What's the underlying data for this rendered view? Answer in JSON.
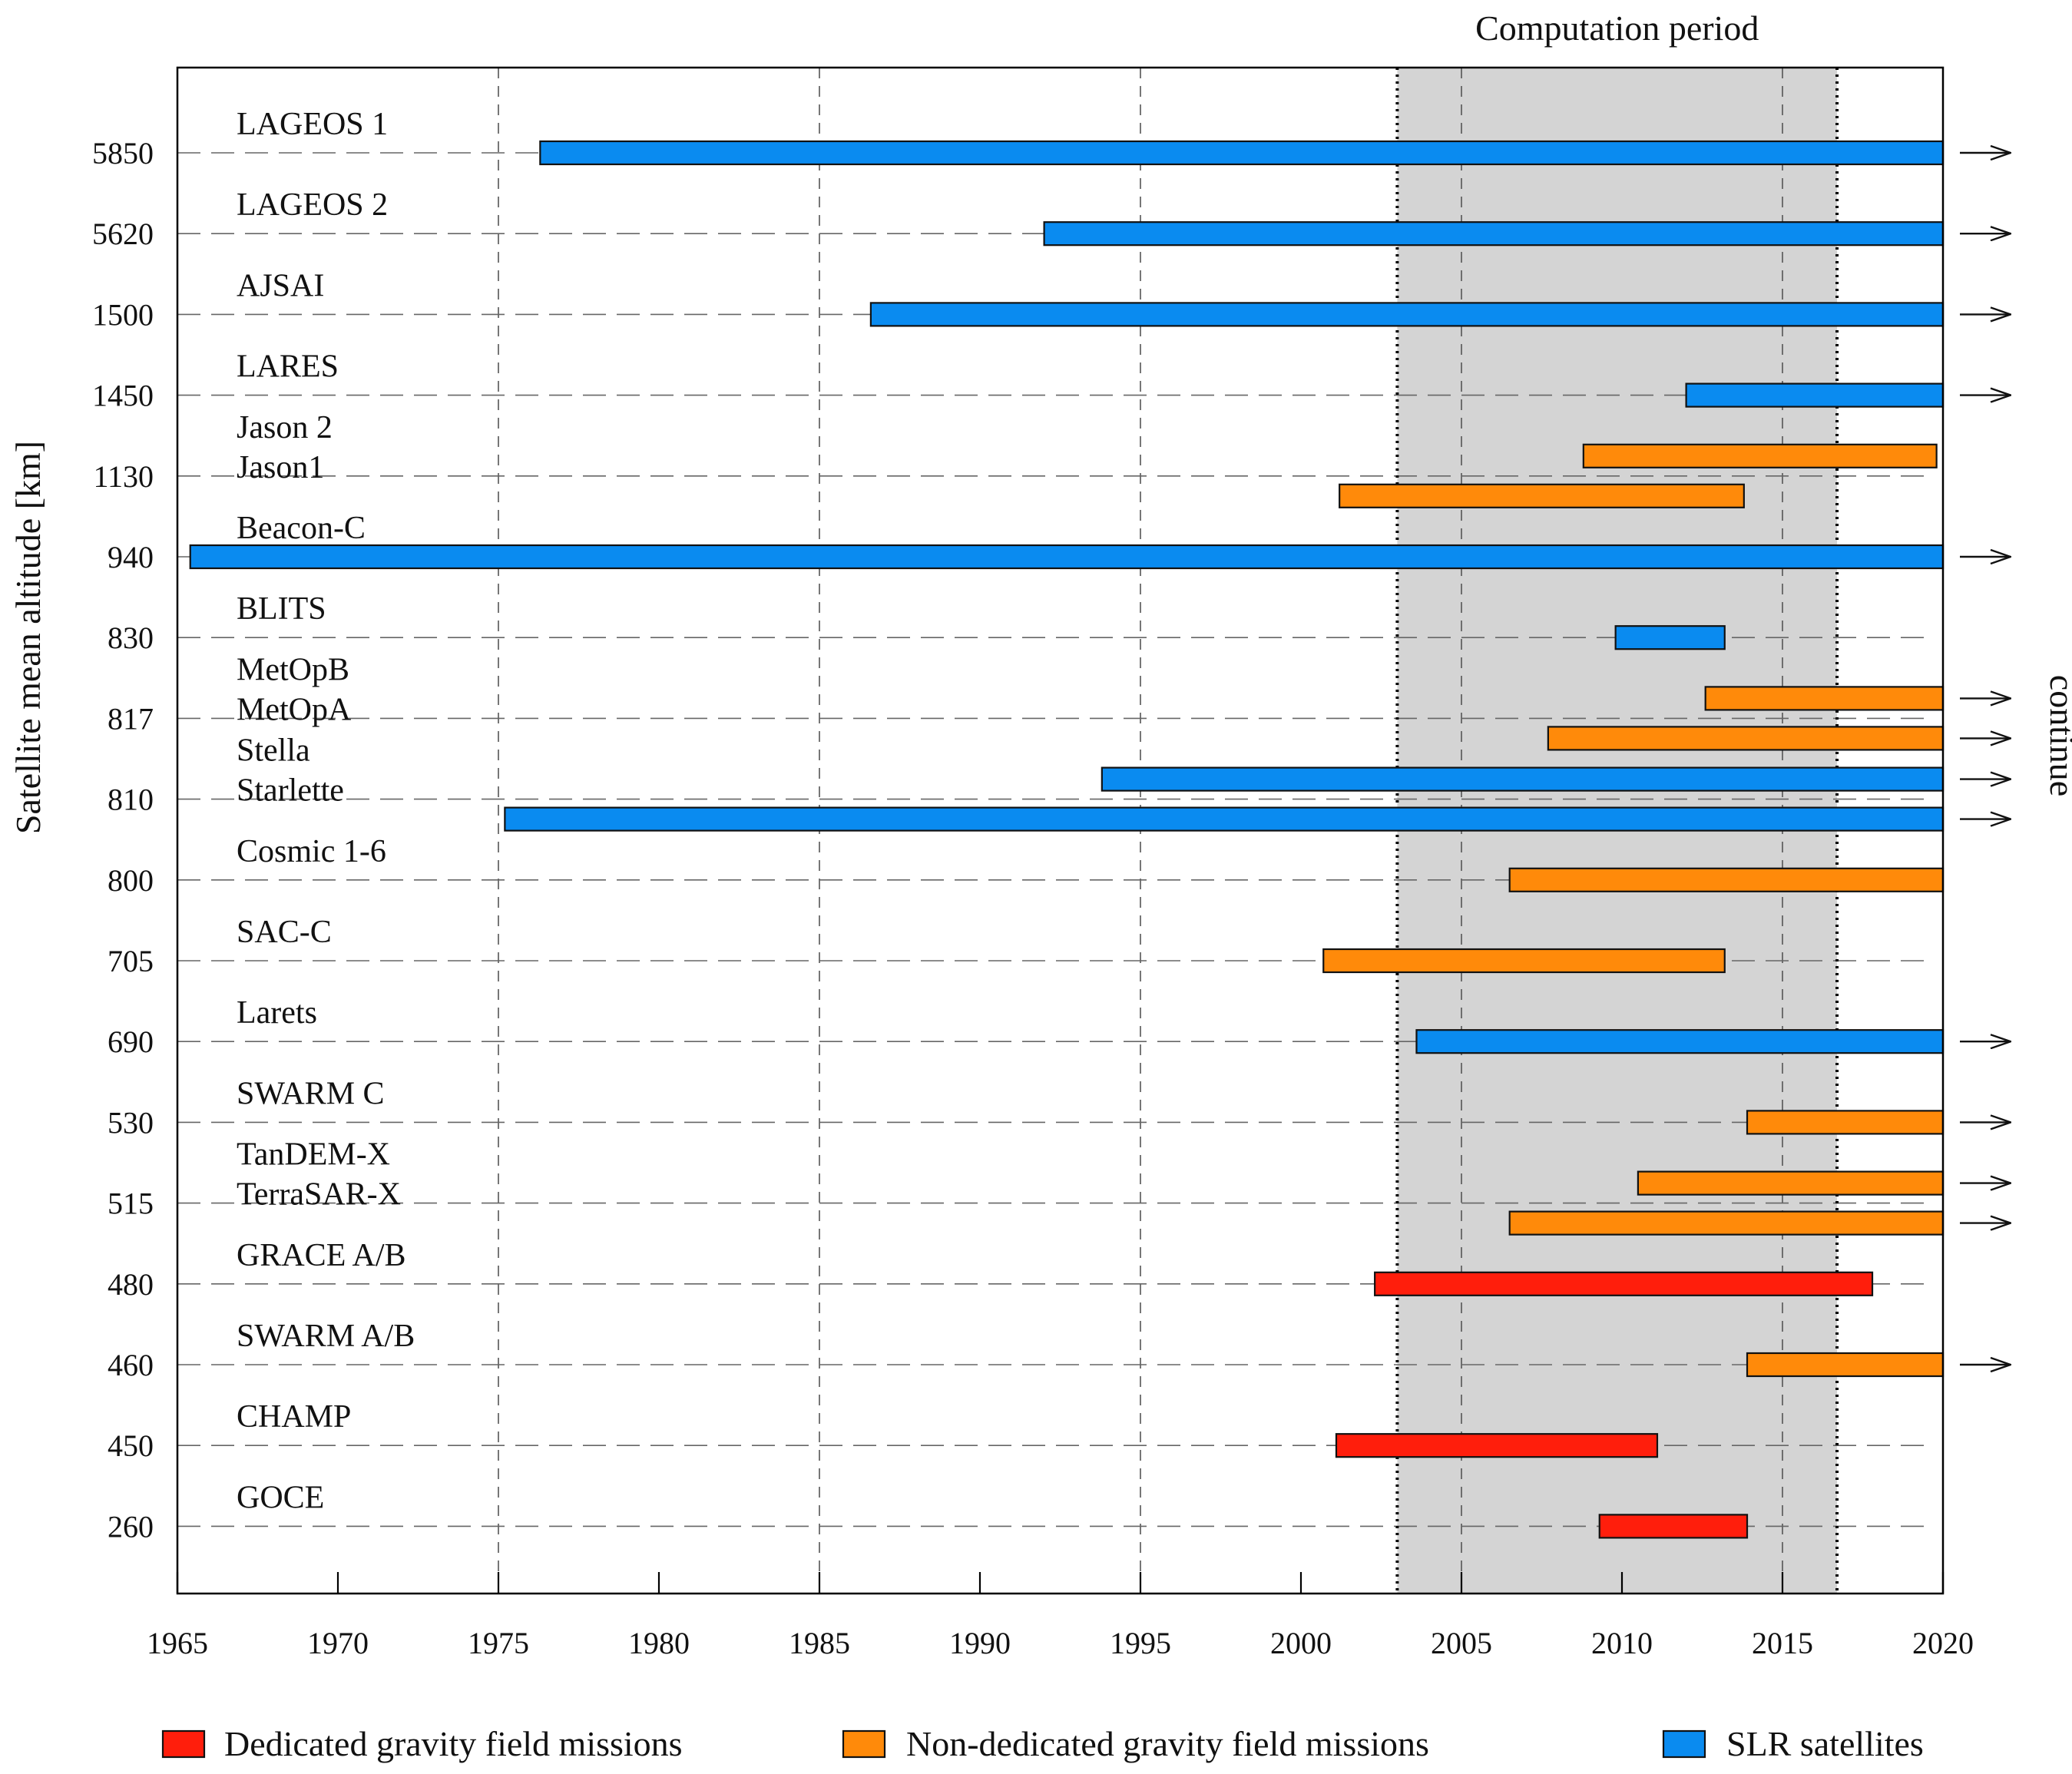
{
  "chart_data": {
    "type": "timeline-bar",
    "title": "",
    "ylabel": "Satellite mean altitude [km]",
    "xlabel": "",
    "xlim": [
      1965,
      2020
    ],
    "xticks": [
      1965,
      1970,
      1975,
      1980,
      1985,
      1990,
      1995,
      2000,
      2005,
      2010,
      2015,
      2020
    ],
    "yticks": [
      "5850",
      "5620",
      "1500",
      "1450",
      "1130",
      "940",
      "830",
      "817",
      "810",
      "800",
      "705",
      "690",
      "530",
      "515",
      "480",
      "460",
      "450",
      "260"
    ],
    "grid": {
      "vertical_dashed": true,
      "horizontal_dashed": true
    },
    "computation_period": {
      "label": "Computation period",
      "start": 2003.0,
      "end": 2016.7
    },
    "continue_label": "continue",
    "categories": {
      "dedicated": {
        "label": "Dedicated gravity field missions",
        "color": "#ff1e0c"
      },
      "nondedicated": {
        "label": "Non-dedicated gravity field missions",
        "color": "#ff8a0a"
      },
      "slr": {
        "label": "SLR satellites",
        "color": "#0a8bf0"
      }
    },
    "shade_color": "#d4d4d4",
    "missions": [
      {
        "name": "LAGEOS 1",
        "tick": 0,
        "offset": 0,
        "start": 1976.3,
        "end": 2020.0,
        "type": "slr",
        "continue": true
      },
      {
        "name": "LAGEOS 2",
        "tick": 1,
        "offset": 0,
        "start": 1992.0,
        "end": 2020.0,
        "type": "slr",
        "continue": true
      },
      {
        "name": "AJSAI",
        "tick": 2,
        "offset": 0,
        "start": 1986.6,
        "end": 2020.0,
        "type": "slr",
        "continue": true
      },
      {
        "name": "LARES",
        "tick": 3,
        "offset": 0,
        "start": 2012.0,
        "end": 2020.0,
        "type": "slr",
        "continue": true
      },
      {
        "name": "Jason 2",
        "tick": 4,
        "offset": -1,
        "start": 2008.8,
        "end": 2019.8,
        "type": "nondedicated",
        "continue": false
      },
      {
        "name": "Jason1",
        "tick": 4,
        "offset": 1,
        "start": 2001.2,
        "end": 2013.8,
        "type": "nondedicated",
        "continue": false
      },
      {
        "name": "Beacon-C",
        "tick": 5,
        "offset": 0,
        "start": 1965.4,
        "end": 2020.0,
        "type": "slr",
        "continue": true
      },
      {
        "name": "BLITS",
        "tick": 6,
        "offset": 0,
        "start": 2009.8,
        "end": 2013.2,
        "type": "slr",
        "continue": false
      },
      {
        "name": "MetOpB",
        "tick": 7,
        "offset": -1,
        "start": 2012.6,
        "end": 2020.0,
        "type": "nondedicated",
        "continue": true
      },
      {
        "name": "MetOpA",
        "tick": 7,
        "offset": 1,
        "start": 2007.7,
        "end": 2020.0,
        "type": "nondedicated",
        "continue": true
      },
      {
        "name": "Stella",
        "tick": 8,
        "offset": -1,
        "start": 1993.8,
        "end": 2020.0,
        "type": "slr",
        "continue": true
      },
      {
        "name": "Starlette",
        "tick": 8,
        "offset": 1,
        "start": 1975.2,
        "end": 2020.0,
        "type": "slr",
        "continue": true
      },
      {
        "name": "Cosmic 1-6",
        "tick": 9,
        "offset": 0,
        "start": 2006.5,
        "end": 2020.0,
        "type": "nondedicated",
        "continue": false
      },
      {
        "name": "SAC-C",
        "tick": 10,
        "offset": 0,
        "start": 2000.7,
        "end": 2013.2,
        "type": "nondedicated",
        "continue": false
      },
      {
        "name": "Larets",
        "tick": 11,
        "offset": 0,
        "start": 2003.6,
        "end": 2020.0,
        "type": "slr",
        "continue": true
      },
      {
        "name": "SWARM_C",
        "tick": 12,
        "offset": 0,
        "start": 2013.9,
        "end": 2020.0,
        "type": "nondedicated",
        "continue": true
      },
      {
        "name": "TanDEM-X",
        "tick": 13,
        "offset": -1,
        "start": 2010.5,
        "end": 2020.0,
        "type": "nondedicated",
        "continue": true
      },
      {
        "name": "TerraSAR-X",
        "tick": 13,
        "offset": 1,
        "start": 2006.5,
        "end": 2020.0,
        "type": "nondedicated",
        "continue": true
      },
      {
        "name": "GRACE A/B",
        "tick": 14,
        "offset": 0,
        "start": 2002.3,
        "end": 2017.8,
        "type": "dedicated",
        "continue": false
      },
      {
        "name": "SWARM_A/B",
        "tick": 15,
        "offset": 0,
        "start": 2013.9,
        "end": 2020.0,
        "type": "nondedicated",
        "continue": true
      },
      {
        "name": "CHAMP",
        "tick": 16,
        "offset": 0,
        "start": 2001.1,
        "end": 2011.1,
        "type": "dedicated",
        "continue": false
      },
      {
        "name": "GOCE",
        "tick": 17,
        "offset": 0,
        "start": 2009.3,
        "end": 2013.9,
        "type": "dedicated",
        "continue": false
      }
    ]
  }
}
